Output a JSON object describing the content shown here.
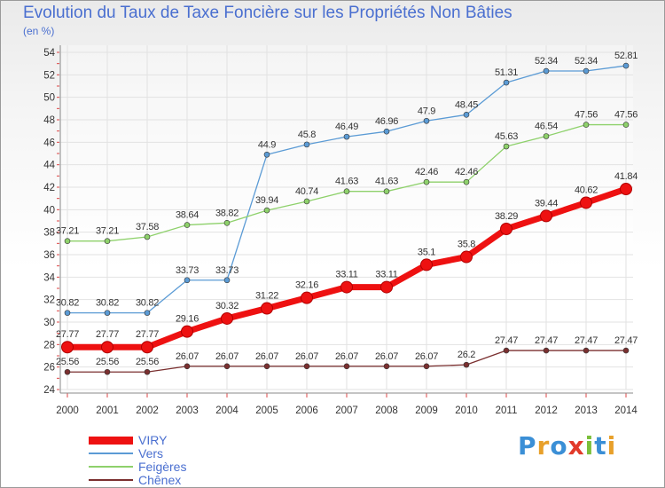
{
  "title": "Evolution du Taux de Taxe Foncière sur les Propriétés Non Bâties",
  "unit_label": "(en %)",
  "brand": "Proxiti",
  "chart_data": {
    "type": "line",
    "title": "Evolution du Taux de Taxe Foncière sur les Propriétés Non Bâties",
    "ylabel": "(en %)",
    "xlabel": "",
    "x": [
      "2000",
      "2001",
      "2002",
      "2003",
      "2004",
      "2005",
      "2006",
      "2007",
      "2008",
      "2009",
      "2010",
      "2011",
      "2012",
      "2013",
      "2014"
    ],
    "ylim": [
      24,
      54
    ],
    "yticks": [
      "24",
      "26",
      "28",
      "30",
      "32",
      "34",
      "36",
      "38",
      "40",
      "42",
      "44",
      "46",
      "48",
      "50",
      "52",
      "54"
    ],
    "grid": true,
    "legend_position": "bottom-left",
    "series": [
      {
        "name": "Vers",
        "color": "#5b9bd5",
        "values": [
          30.82,
          30.82,
          30.82,
          33.73,
          33.73,
          44.9,
          45.8,
          46.49,
          46.96,
          47.9,
          48.45,
          51.31,
          52.34,
          52.34,
          52.81
        ],
        "labels": [
          "30.82",
          "30.82",
          "30.82",
          "33.73",
          "33.73",
          "44.9",
          "45.8",
          "46.49",
          "46.96",
          "47.9",
          "48.45",
          "51.31",
          "52.34",
          "52.34",
          "52.81"
        ]
      },
      {
        "name": "Feigères",
        "color": "#8ed16b",
        "values": [
          37.21,
          37.21,
          37.58,
          38.64,
          38.82,
          39.94,
          40.74,
          41.63,
          41.63,
          42.46,
          42.46,
          45.63,
          46.54,
          47.56,
          47.56
        ],
        "labels": [
          "37.21",
          "37.21",
          "37.58",
          "38.64",
          "38.82",
          "39.94",
          "40.74",
          "41.63",
          "41.63",
          "42.46",
          "42.46",
          "45.63",
          "46.54",
          "47.56",
          "47.56"
        ]
      },
      {
        "name": "VIRY",
        "color": "#ee1111",
        "values": [
          27.77,
          27.77,
          27.77,
          29.16,
          30.32,
          31.22,
          32.16,
          33.11,
          33.11,
          35.1,
          35.8,
          38.29,
          39.44,
          40.62,
          41.84
        ],
        "labels": [
          "27.77",
          "27.77",
          "27.77",
          "29.16",
          "30.32",
          "31.22",
          "32.16",
          "33.11",
          "33.11",
          "35.1",
          "35.8",
          "38.29",
          "39.44",
          "40.62",
          "41.84"
        ]
      },
      {
        "name": "Chênex",
        "color": "#7a2f2f",
        "values": [
          25.56,
          25.56,
          25.56,
          26.07,
          26.07,
          26.07,
          26.07,
          26.07,
          26.07,
          26.07,
          26.2,
          27.47,
          27.47,
          27.47,
          27.47
        ],
        "labels": [
          "25.56",
          "25.56",
          "25.56",
          "26.07",
          "26.07",
          "26.07",
          "26.07",
          "26.07",
          "26.07",
          "26.07",
          "26.2",
          "27.47",
          "27.47",
          "27.47",
          "27.47"
        ]
      }
    ],
    "legend": [
      {
        "name": "VIRY",
        "color": "#ee1111"
      },
      {
        "name": "Vers",
        "color": "#5b9bd5"
      },
      {
        "name": "Feigères",
        "color": "#8ed16b"
      },
      {
        "name": "Chênex",
        "color": "#7a2f2f"
      }
    ]
  }
}
